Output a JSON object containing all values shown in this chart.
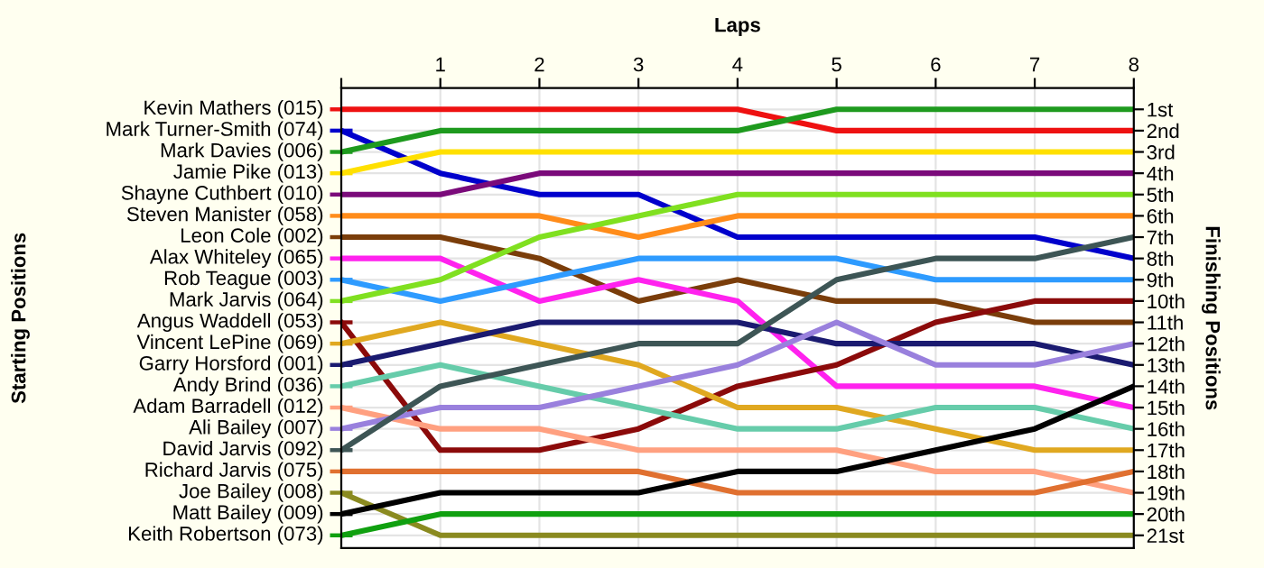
{
  "chart_data": {
    "type": "line",
    "xlabel": "Laps",
    "annotations": [
      "Starting Positions"
    ],
    "y2label": "Finishing Positions",
    "x": [
      0,
      1,
      2,
      3,
      4,
      5,
      6,
      7,
      8
    ],
    "xlim": [
      0,
      8
    ],
    "xticks": [
      {
        "value": 0,
        "label": null
      },
      1,
      2,
      3,
      4,
      5,
      6,
      7,
      8
    ],
    "ylim": [
      21.6,
      0
    ],
    "yticks": [
      {
        "value": 1,
        "label": "1st"
      },
      {
        "value": 2,
        "label": "2nd"
      },
      {
        "value": 3,
        "label": "3rd"
      },
      {
        "value": 4,
        "label": "4th"
      },
      {
        "value": 5,
        "label": "5th"
      },
      {
        "value": 6,
        "label": "6th"
      },
      {
        "value": 7,
        "label": "7th"
      },
      {
        "value": 8,
        "label": "8th"
      },
      {
        "value": 9,
        "label": "9th"
      },
      {
        "value": 10,
        "label": "10th"
      },
      {
        "value": 11,
        "label": "11th"
      },
      {
        "value": 12,
        "label": "12th"
      },
      {
        "value": 13,
        "label": "13th"
      },
      {
        "value": 14,
        "label": "14th"
      },
      {
        "value": 15,
        "label": "15th"
      },
      {
        "value": 16,
        "label": "16th"
      },
      {
        "value": 17,
        "label": "17th"
      },
      {
        "value": 18,
        "label": "18th"
      },
      {
        "value": 19,
        "label": "19th"
      },
      {
        "value": 20,
        "label": "20th"
      },
      {
        "value": 21,
        "label": "21st"
      }
    ],
    "grid": true,
    "legend": "left",
    "marker": "none",
    "line_style": "solid",
    "series": [
      {
        "name": "Kevin Mathers (015)",
        "color": "#ee1111",
        "values": [
          1,
          1,
          1,
          1,
          1,
          2,
          2,
          2,
          2
        ]
      },
      {
        "name": "Mark Turner-Smith (074)",
        "color": "#0000cc",
        "values": [
          2,
          4,
          5,
          5,
          7,
          7,
          7,
          7,
          8
        ]
      },
      {
        "name": "Mark Davies (006)",
        "color": "#1e9a1e",
        "values": [
          3,
          2,
          2,
          2,
          2,
          1,
          1,
          1,
          1
        ]
      },
      {
        "name": "Jamie Pike (013)",
        "color": "#ffe000",
        "values": [
          4,
          3,
          3,
          3,
          3,
          3,
          3,
          3,
          3
        ]
      },
      {
        "name": "Shayne Cuthbert (010)",
        "color": "#7a0a7a",
        "values": [
          5,
          5,
          4,
          4,
          4,
          4,
          4,
          4,
          4
        ]
      },
      {
        "name": "Steven Manister (058)",
        "color": "#ff8c1a",
        "values": [
          6,
          6,
          6,
          7,
          6,
          6,
          6,
          6,
          6
        ]
      },
      {
        "name": "Leon Cole (002)",
        "color": "#7a3d0a",
        "values": [
          7,
          7,
          8,
          10,
          9,
          10,
          10,
          11,
          11
        ]
      },
      {
        "name": "Alax Whiteley (065)",
        "color": "#ff22ee",
        "values": [
          8,
          8,
          10,
          9,
          10,
          14,
          14,
          14,
          15
        ]
      },
      {
        "name": "Rob Teague (003)",
        "color": "#2e9bff",
        "values": [
          9,
          10,
          9,
          8,
          8,
          8,
          9,
          9,
          9
        ]
      },
      {
        "name": "Mark Jarvis (064)",
        "color": "#80e020",
        "values": [
          10,
          9,
          7,
          6,
          5,
          5,
          5,
          5,
          5
        ]
      },
      {
        "name": "Angus Waddell (053)",
        "color": "#8b0a0a",
        "values": [
          11,
          17,
          17,
          16,
          14,
          13,
          11,
          10,
          10
        ]
      },
      {
        "name": "Vincent LePine (069)",
        "color": "#e0a820",
        "values": [
          12,
          11,
          12,
          13,
          15,
          15,
          16,
          17,
          17
        ]
      },
      {
        "name": "Garry Horsford (001)",
        "color": "#1a1a70",
        "values": [
          13,
          12,
          11,
          11,
          11,
          12,
          12,
          12,
          13
        ]
      },
      {
        "name": "Andy Brind (036)",
        "color": "#66ccaa",
        "values": [
          14,
          13,
          14,
          15,
          16,
          16,
          15,
          15,
          16
        ]
      },
      {
        "name": "Adam Barradell (012)",
        "color": "#ffa080",
        "values": [
          15,
          16,
          16,
          17,
          17,
          17,
          18,
          18,
          19
        ]
      },
      {
        "name": "Ali Bailey (007)",
        "color": "#9980dd",
        "values": [
          16,
          15,
          15,
          14,
          13,
          11,
          13,
          13,
          12
        ]
      },
      {
        "name": "David Jarvis (092)",
        "color": "#3d5555",
        "values": [
          17,
          14,
          13,
          12,
          12,
          9,
          8,
          8,
          7
        ]
      },
      {
        "name": "Richard Jarvis (075)",
        "color": "#e07030",
        "values": [
          18,
          18,
          18,
          18,
          19,
          19,
          19,
          19,
          18
        ]
      },
      {
        "name": "Joe Bailey (008)",
        "color": "#8a8a20",
        "values": [
          19,
          21,
          21,
          21,
          21,
          21,
          21,
          21,
          21
        ]
      },
      {
        "name": "Matt Bailey (009)",
        "color": "#000000",
        "values": [
          20,
          19,
          19,
          19,
          18,
          18,
          17,
          16,
          14
        ]
      },
      {
        "name": "Keith Robertson (073)",
        "color": "#10a010",
        "values": [
          21,
          20,
          20,
          20,
          20,
          20,
          20,
          20,
          20
        ]
      }
    ]
  }
}
